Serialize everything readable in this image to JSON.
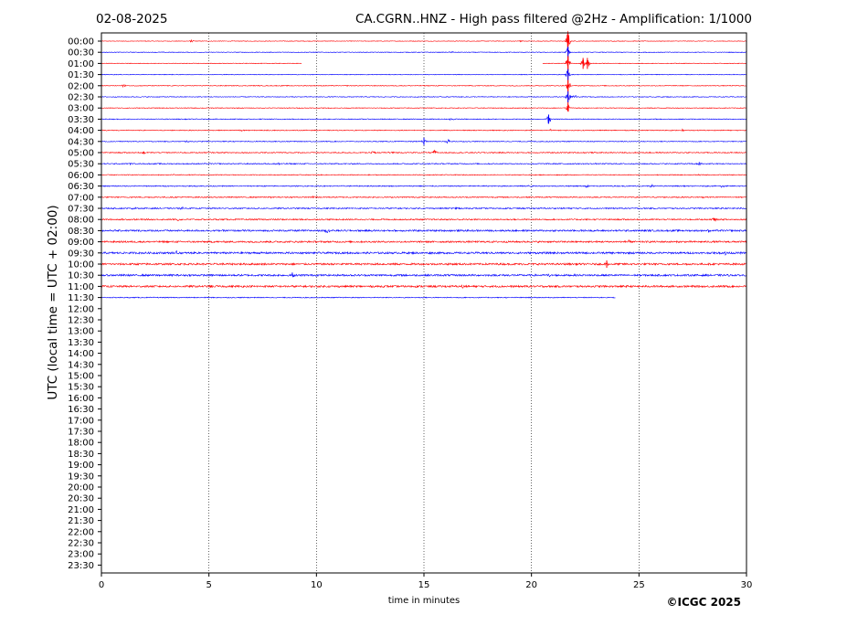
{
  "header": {
    "date": "02-08-2025",
    "title": "CA.CGRN..HNZ - High pass filtered @2Hz - Amplification: 1/1000"
  },
  "copyright": "©ICGC 2025",
  "colors": {
    "trace_a": "#ff0000",
    "trace_b": "#0000ff",
    "axis": "#000000",
    "grid": "#000000"
  },
  "chart_data": {
    "type": "line",
    "title": "CA.CGRN..HNZ - High pass filtered @2Hz - Amplification: 1/1000",
    "xlabel": "time in minutes",
    "ylabel": "UTC (local time = UTC + 02:00)",
    "xlim": [
      0,
      30
    ],
    "x_ticks": [
      "0",
      "5",
      "10",
      "15",
      "20",
      "25",
      "30"
    ],
    "x_tick_values": [
      0,
      5,
      10,
      15,
      20,
      25,
      30
    ],
    "grid": "vertical dotted lines at x ticks",
    "row_labels": [
      "00:00",
      "00:30",
      "01:00",
      "01:30",
      "02:00",
      "02:30",
      "03:00",
      "03:30",
      "04:00",
      "04:30",
      "05:00",
      "05:30",
      "06:00",
      "06:30",
      "07:00",
      "07:30",
      "08:00",
      "08:30",
      "09:00",
      "09:30",
      "10:00",
      "10:30",
      "11:00",
      "11:30",
      "12:00",
      "12:30",
      "13:00",
      "13:30",
      "14:00",
      "14:30",
      "15:00",
      "15:30",
      "16:00",
      "16:30",
      "17:00",
      "17:30",
      "18:00",
      "18:30",
      "19:00",
      "19:30",
      "20:00",
      "20:30",
      "21:00",
      "21:30",
      "22:00",
      "22:30",
      "23:00",
      "23:30"
    ],
    "series": [
      {
        "row": "00:00",
        "color": "red",
        "end": 30,
        "noise": 0.3,
        "events": [
          {
            "t": 21.7,
            "amp": 14,
            "note": "large vertical spike"
          },
          {
            "t": 4.2,
            "amp": 1.5
          },
          {
            "t": 19.5,
            "amp": 1.2
          }
        ]
      },
      {
        "row": "00:30",
        "color": "blue",
        "end": 30,
        "noise": 0.35,
        "events": [
          {
            "t": 21.7,
            "amp": 6
          },
          {
            "t": 16.3,
            "amp": 1
          }
        ]
      },
      {
        "row": "01:00",
        "color": "red",
        "end": 30,
        "noise": 0.35,
        "gaps": [
          [
            9.3,
            20.5
          ]
        ],
        "events": [
          {
            "t": 21.7,
            "amp": 8
          },
          {
            "t": 22.4,
            "amp": 6
          },
          {
            "t": 22.6,
            "amp": 6
          }
        ]
      },
      {
        "row": "01:30",
        "color": "blue",
        "end": 30,
        "noise": 0.35,
        "events": [
          {
            "t": 21.7,
            "amp": 6
          }
        ]
      },
      {
        "row": "02:00",
        "color": "red",
        "end": 30,
        "noise": 0.4,
        "events": [
          {
            "t": 1.0,
            "amp": 2
          },
          {
            "t": 21.7,
            "amp": 6
          }
        ]
      },
      {
        "row": "02:30",
        "color": "blue",
        "end": 30,
        "noise": 0.4,
        "events": [
          {
            "t": 22.0,
            "amp": 2
          },
          {
            "t": 21.7,
            "amp": 6
          }
        ]
      },
      {
        "row": "03:00",
        "color": "red",
        "end": 30,
        "noise": 0.4,
        "events": [
          {
            "t": 21.7,
            "amp": 4
          }
        ]
      },
      {
        "row": "03:30",
        "color": "blue",
        "end": 30,
        "noise": 0.45,
        "events": [
          {
            "t": 20.8,
            "amp": 5
          },
          {
            "t": 16.3,
            "amp": 1.5
          }
        ]
      },
      {
        "row": "04:00",
        "color": "red",
        "end": 30,
        "noise": 0.45,
        "events": [
          {
            "t": 6.5,
            "amp": 3
          },
          {
            "t": 20.9,
            "amp": 1.5
          },
          {
            "t": 27.0,
            "amp": 1.5
          }
        ]
      },
      {
        "row": "04:30",
        "color": "blue",
        "end": 30,
        "noise": 0.45,
        "events": [
          {
            "t": 15.0,
            "amp": 4
          },
          {
            "t": 16.1,
            "amp": 3
          },
          {
            "t": 4.0,
            "amp": 1
          }
        ]
      },
      {
        "row": "05:00",
        "color": "red",
        "end": 30,
        "noise": 0.55,
        "events": [
          {
            "t": 12.6,
            "amp": 2
          },
          {
            "t": 13.5,
            "amp": 1.5
          },
          {
            "t": 15.5,
            "amp": 3
          },
          {
            "t": 2.0,
            "amp": 1.2
          }
        ]
      },
      {
        "row": "05:30",
        "color": "blue",
        "end": 30,
        "noise": 0.55,
        "events": [
          {
            "t": 8.2,
            "amp": 1.5
          },
          {
            "t": 27.8,
            "amp": 3
          },
          {
            "t": 1.3,
            "amp": 1.2
          }
        ]
      },
      {
        "row": "06:00",
        "color": "red",
        "end": 30,
        "noise": 0.45,
        "events": [
          {
            "t": 3.4,
            "amp": 1
          },
          {
            "t": 27.8,
            "amp": 1.5
          }
        ]
      },
      {
        "row": "06:30",
        "color": "blue",
        "end": 30,
        "noise": 0.55,
        "events": [
          {
            "t": 19.9,
            "amp": 1.5
          },
          {
            "t": 22.6,
            "amp": 2
          },
          {
            "t": 25.6,
            "amp": 2
          },
          {
            "t": 28.9,
            "amp": 2
          }
        ]
      },
      {
        "row": "07:00",
        "color": "red",
        "end": 30,
        "noise": 0.6,
        "events": [
          {
            "t": 9.9,
            "amp": 2
          },
          {
            "t": 7.8,
            "amp": 1.5
          },
          {
            "t": 28.0,
            "amp": 1.5
          }
        ]
      },
      {
        "row": "07:30",
        "color": "blue",
        "end": 30,
        "noise": 0.65,
        "events": [
          {
            "t": 1.5,
            "amp": 1.5
          },
          {
            "t": 3.7,
            "amp": 2
          },
          {
            "t": 16.5,
            "amp": 2
          }
        ]
      },
      {
        "row": "08:00",
        "color": "red",
        "end": 30,
        "noise": 0.7,
        "events": [
          {
            "t": 3.6,
            "amp": 1.5
          },
          {
            "t": 28.5,
            "amp": 2
          }
        ]
      },
      {
        "row": "08:30",
        "color": "blue",
        "end": 30,
        "noise": 0.9,
        "events": [
          {
            "t": 10.5,
            "amp": 2
          },
          {
            "t": 28.2,
            "amp": 2
          }
        ]
      },
      {
        "row": "09:00",
        "color": "red",
        "end": 30,
        "noise": 0.9,
        "events": [
          {
            "t": 24.5,
            "amp": 1.5
          }
        ]
      },
      {
        "row": "09:30",
        "color": "blue",
        "end": 30,
        "noise": 1.0,
        "events": [
          {
            "t": 3.5,
            "amp": 1.5
          },
          {
            "t": 29.0,
            "amp": 2
          }
        ]
      },
      {
        "row": "10:00",
        "color": "red",
        "end": 30,
        "noise": 1.0,
        "events": [
          {
            "t": 23.5,
            "amp": 4
          }
        ]
      },
      {
        "row": "10:30",
        "color": "blue",
        "end": 30,
        "noise": 1.0,
        "events": [
          {
            "t": 8.9,
            "amp": 3
          },
          {
            "t": 20.8,
            "amp": 1.5
          }
        ]
      },
      {
        "row": "11:00",
        "color": "red",
        "end": 30,
        "noise": 1.0,
        "events": [
          {
            "t": 5.1,
            "amp": 2.5
          },
          {
            "t": 16.8,
            "amp": 2
          }
        ]
      },
      {
        "row": "11:30",
        "color": "blue",
        "end": 23.9,
        "noise": 0.5,
        "events": []
      }
    ]
  }
}
